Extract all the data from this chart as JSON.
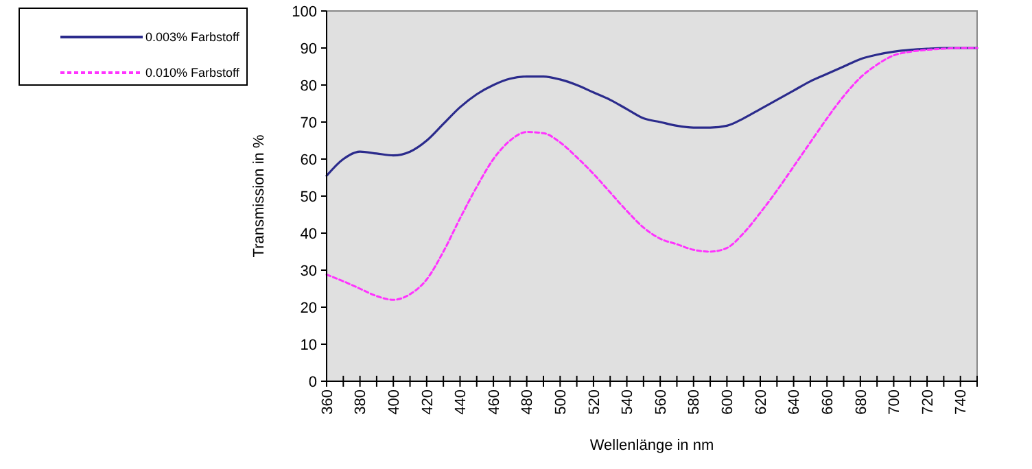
{
  "chart_data": {
    "type": "line",
    "xlabel": "Wellenlänge in nm",
    "ylabel": "Transmission in %",
    "x": [
      360,
      370,
      380,
      390,
      400,
      410,
      420,
      430,
      440,
      450,
      460,
      470,
      480,
      490,
      500,
      510,
      520,
      530,
      540,
      550,
      560,
      570,
      580,
      590,
      600,
      610,
      620,
      630,
      640,
      650,
      660,
      670,
      680,
      690,
      700,
      710,
      720,
      730,
      740,
      750
    ],
    "series": [
      {
        "name": "0.003% Farbstoff",
        "color": "#2b2b8c",
        "line_style": "solid",
        "values": [
          55.5,
          60,
          62,
          61.5,
          61,
          62,
          65,
          69.5,
          74,
          77.5,
          80,
          81.7,
          82.3,
          82.3,
          81.5,
          80,
          78,
          76,
          73.5,
          71,
          70,
          69,
          68.5,
          68.5,
          69,
          71,
          73.5,
          76,
          78.5,
          81,
          83,
          85,
          87,
          88.2,
          89,
          89.5,
          89.8,
          90,
          90,
          90
        ]
      },
      {
        "name": "0.010% Farbstoff",
        "color": "#ff33ff",
        "line_style": "dashed",
        "values": [
          28.8,
          27,
          25,
          23,
          22,
          23.5,
          27.5,
          35,
          44,
          52.5,
          60,
          65,
          67.3,
          67,
          64.5,
          60.5,
          56,
          51,
          46,
          41.5,
          38.5,
          37,
          35.5,
          35,
          36,
          40,
          45.5,
          51.5,
          58,
          64.5,
          71,
          77,
          82,
          85.5,
          88,
          89,
          89.5,
          89.8,
          90,
          90
        ]
      }
    ],
    "xlim": [
      360,
      750
    ],
    "xticks": [
      360,
      {
        "value": 370,
        "label": null
      },
      380,
      {
        "value": 390,
        "label": null
      },
      400,
      {
        "value": 410,
        "label": null
      },
      420,
      {
        "value": 430,
        "label": null
      },
      440,
      {
        "value": 450,
        "label": null
      },
      460,
      {
        "value": 470,
        "label": null
      },
      480,
      {
        "value": 490,
        "label": null
      },
      500,
      {
        "value": 510,
        "label": null
      },
      520,
      {
        "value": 530,
        "label": null
      },
      540,
      {
        "value": 550,
        "label": null
      },
      560,
      {
        "value": 570,
        "label": null
      },
      580,
      {
        "value": 590,
        "label": null
      },
      600,
      {
        "value": 610,
        "label": null
      },
      620,
      {
        "value": 630,
        "label": null
      },
      640,
      {
        "value": 650,
        "label": null
      },
      660,
      {
        "value": 670,
        "label": null
      },
      680,
      {
        "value": 690,
        "label": null
      },
      700,
      {
        "value": 710,
        "label": null
      },
      720,
      {
        "value": 730,
        "label": null
      },
      740,
      {
        "value": 750,
        "label": null
      }
    ],
    "ylim": [
      0,
      100
    ],
    "yticks": [
      0,
      10,
      20,
      30,
      40,
      50,
      60,
      70,
      80,
      90,
      100
    ],
    "grid": false,
    "legend": "top left",
    "marker": "none"
  }
}
